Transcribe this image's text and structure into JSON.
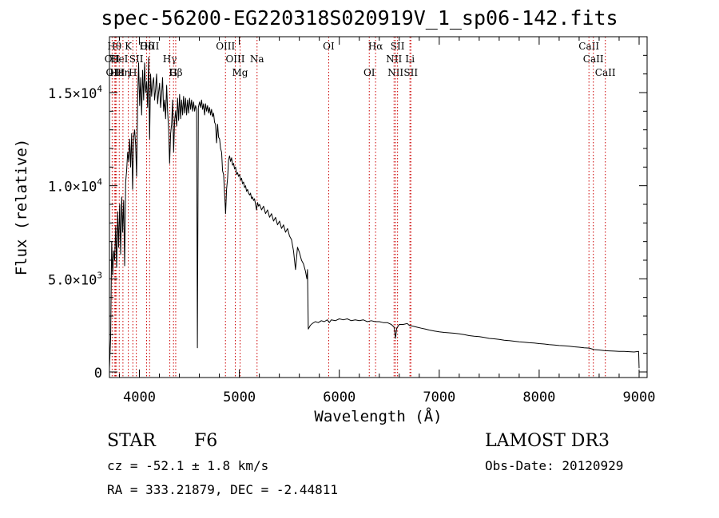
{
  "title": "spec-56200-EG220318S020919V_1_sp06-142.fits",
  "chart_data": {
    "type": "line",
    "title": "spec-56200-EG220318S020919V_1_sp06-142.fits",
    "xlabel": "Wavelength (Å)",
    "ylabel": "Flux (relative)",
    "xlim": [
      3700,
      9080
    ],
    "ylim": [
      -300,
      18000
    ],
    "xticks": [
      4000,
      5000,
      6000,
      7000,
      8000,
      9000
    ],
    "xtick_labels": [
      "4000",
      "5000",
      "6000",
      "7000",
      "8000",
      "9000"
    ],
    "yticks": [
      0,
      5000,
      10000,
      15000
    ],
    "ytick_labels": [
      {
        "mantissa": "0",
        "exp": ""
      },
      {
        "mantissa": "5.0×10",
        "exp": "3"
      },
      {
        "mantissa": "1.0×10",
        "exp": "4"
      },
      {
        "mantissa": "1.5×10",
        "exp": "4"
      }
    ],
    "series": [
      {
        "name": "spectrum",
        "points": [
          [
            3700,
            200
          ],
          [
            3712,
            1800
          ],
          [
            3722,
            7000
          ],
          [
            3732,
            5200
          ],
          [
            3742,
            6500
          ],
          [
            3752,
            6000
          ],
          [
            3762,
            7800
          ],
          [
            3772,
            5600
          ],
          [
            3782,
            8600
          ],
          [
            3792,
            6700
          ],
          [
            3802,
            9000
          ],
          [
            3812,
            6300
          ],
          [
            3822,
            9400
          ],
          [
            3832,
            7500
          ],
          [
            3842,
            9200
          ],
          [
            3852,
            5700
          ],
          [
            3862,
            10200
          ],
          [
            3872,
            10800
          ],
          [
            3882,
            11800
          ],
          [
            3892,
            11300
          ],
          [
            3902,
            12500
          ],
          [
            3912,
            11000
          ],
          [
            3922,
            12800
          ],
          [
            3932,
            9800
          ],
          [
            3942,
            12600
          ],
          [
            3952,
            13000
          ],
          [
            3962,
            12200
          ],
          [
            3972,
            10500
          ],
          [
            3982,
            14600
          ],
          [
            3992,
            16600
          ],
          [
            4002,
            14300
          ],
          [
            4012,
            15800
          ],
          [
            4022,
            13800
          ],
          [
            4032,
            16200
          ],
          [
            4042,
            14600
          ],
          [
            4052,
            16600
          ],
          [
            4062,
            15000
          ],
          [
            4072,
            15600
          ],
          [
            4082,
            14200
          ],
          [
            4092,
            16900
          ],
          [
            4102,
            12500
          ],
          [
            4112,
            16000
          ],
          [
            4122,
            14800
          ],
          [
            4132,
            15500
          ],
          [
            4142,
            15800
          ],
          [
            4152,
            14600
          ],
          [
            4162,
            15200
          ],
          [
            4172,
            16000
          ],
          [
            4182,
            14400
          ],
          [
            4192,
            15000
          ],
          [
            4202,
            15500
          ],
          [
            4212,
            14200
          ],
          [
            4222,
            14900
          ],
          [
            4232,
            15800
          ],
          [
            4242,
            14000
          ],
          [
            4252,
            14600
          ],
          [
            4262,
            13600
          ],
          [
            4272,
            15400
          ],
          [
            4282,
            14000
          ],
          [
            4292,
            13000
          ],
          [
            4302,
            11200
          ],
          [
            4312,
            12800
          ],
          [
            4322,
            13300
          ],
          [
            4332,
            14600
          ],
          [
            4342,
            11800
          ],
          [
            4352,
            13500
          ],
          [
            4362,
            14000
          ],
          [
            4372,
            13200
          ],
          [
            4382,
            14700
          ],
          [
            4392,
            13500
          ],
          [
            4402,
            14900
          ],
          [
            4412,
            13600
          ],
          [
            4422,
            14600
          ],
          [
            4432,
            13800
          ],
          [
            4442,
            14800
          ],
          [
            4452,
            13900
          ],
          [
            4462,
            14700
          ],
          [
            4472,
            13800
          ],
          [
            4482,
            14600
          ],
          [
            4492,
            13900
          ],
          [
            4502,
            14700
          ],
          [
            4512,
            14100
          ],
          [
            4522,
            14600
          ],
          [
            4532,
            14000
          ],
          [
            4542,
            14500
          ],
          [
            4552,
            14000
          ],
          [
            4562,
            14300
          ],
          [
            4572,
            14100
          ],
          [
            4580,
            1300
          ],
          [
            4590,
            14200
          ],
          [
            4602,
            14500
          ],
          [
            4612,
            14200
          ],
          [
            4622,
            14600
          ],
          [
            4632,
            14100
          ],
          [
            4642,
            14400
          ],
          [
            4652,
            13800
          ],
          [
            4662,
            14400
          ],
          [
            4672,
            14000
          ],
          [
            4682,
            14300
          ],
          [
            4692,
            13900
          ],
          [
            4702,
            14200
          ],
          [
            4712,
            13800
          ],
          [
            4722,
            14100
          ],
          [
            4732,
            13700
          ],
          [
            4742,
            13900
          ],
          [
            4752,
            13400
          ],
          [
            4762,
            13300
          ],
          [
            4772,
            12300
          ],
          [
            4782,
            13300
          ],
          [
            4792,
            12600
          ],
          [
            4802,
            12500
          ],
          [
            4812,
            12000
          ],
          [
            4822,
            11800
          ],
          [
            4832,
            10800
          ],
          [
            4842,
            10600
          ],
          [
            4852,
            9600
          ],
          [
            4862,
            8500
          ],
          [
            4872,
            9800
          ],
          [
            4882,
            10400
          ],
          [
            4892,
            11400
          ],
          [
            4902,
            11600
          ],
          [
            4912,
            11300
          ],
          [
            4922,
            11500
          ],
          [
            4932,
            11100
          ],
          [
            4942,
            11200
          ],
          [
            4952,
            10900
          ],
          [
            4962,
            11000
          ],
          [
            4972,
            10600
          ],
          [
            4982,
            10700
          ],
          [
            4992,
            10500
          ],
          [
            5002,
            10600
          ],
          [
            5012,
            10300
          ],
          [
            5022,
            10400
          ],
          [
            5032,
            10100
          ],
          [
            5042,
            10200
          ],
          [
            5052,
            9900
          ],
          [
            5062,
            10000
          ],
          [
            5072,
            9700
          ],
          [
            5082,
            9800
          ],
          [
            5092,
            9600
          ],
          [
            5102,
            9500
          ],
          [
            5112,
            9600
          ],
          [
            5122,
            9300
          ],
          [
            5132,
            9400
          ],
          [
            5142,
            9200
          ],
          [
            5152,
            9300
          ],
          [
            5162,
            9000
          ],
          [
            5172,
            8700
          ],
          [
            5182,
            9100
          ],
          [
            5192,
            8900
          ],
          [
            5202,
            9000
          ],
          [
            5222,
            8700
          ],
          [
            5242,
            8900
          ],
          [
            5262,
            8500
          ],
          [
            5282,
            8700
          ],
          [
            5302,
            8300
          ],
          [
            5322,
            8500
          ],
          [
            5342,
            8100
          ],
          [
            5362,
            8300
          ],
          [
            5382,
            7900
          ],
          [
            5402,
            8100
          ],
          [
            5422,
            7700
          ],
          [
            5442,
            7900
          ],
          [
            5462,
            7500
          ],
          [
            5482,
            7700
          ],
          [
            5502,
            7300
          ],
          [
            5522,
            7100
          ],
          [
            5542,
            6500
          ],
          [
            5562,
            5500
          ],
          [
            5582,
            6700
          ],
          [
            5602,
            6400
          ],
          [
            5622,
            6000
          ],
          [
            5642,
            5800
          ],
          [
            5662,
            5400
          ],
          [
            5675,
            5000
          ],
          [
            5682,
            5500
          ],
          [
            5690,
            2300
          ],
          [
            5710,
            2500
          ],
          [
            5730,
            2600
          ],
          [
            5760,
            2700
          ],
          [
            5790,
            2650
          ],
          [
            5820,
            2750
          ],
          [
            5850,
            2700
          ],
          [
            5880,
            2800
          ],
          [
            5900,
            2650
          ],
          [
            5920,
            2800
          ],
          [
            5960,
            2750
          ],
          [
            6000,
            2850
          ],
          [
            6040,
            2800
          ],
          [
            6080,
            2850
          ],
          [
            6120,
            2750
          ],
          [
            6160,
            2800
          ],
          [
            6200,
            2750
          ],
          [
            6240,
            2800
          ],
          [
            6280,
            2700
          ],
          [
            6320,
            2750
          ],
          [
            6360,
            2700
          ],
          [
            6400,
            2700
          ],
          [
            6440,
            2650
          ],
          [
            6480,
            2650
          ],
          [
            6520,
            2550
          ],
          [
            6550,
            2400
          ],
          [
            6562,
            1800
          ],
          [
            6575,
            2350
          ],
          [
            6600,
            2550
          ],
          [
            6640,
            2550
          ],
          [
            6680,
            2600
          ],
          [
            6700,
            2500
          ],
          [
            6740,
            2450
          ],
          [
            6780,
            2400
          ],
          [
            6820,
            2350
          ],
          [
            6860,
            2300
          ],
          [
            6900,
            2250
          ],
          [
            6950,
            2200
          ],
          [
            7000,
            2150
          ],
          [
            7050,
            2120
          ],
          [
            7100,
            2100
          ],
          [
            7150,
            2080
          ],
          [
            7200,
            2050
          ],
          [
            7250,
            2000
          ],
          [
            7300,
            1950
          ],
          [
            7350,
            1920
          ],
          [
            7400,
            1900
          ],
          [
            7450,
            1850
          ],
          [
            7500,
            1800
          ],
          [
            7550,
            1780
          ],
          [
            7600,
            1750
          ],
          [
            7650,
            1700
          ],
          [
            7700,
            1680
          ],
          [
            7750,
            1650
          ],
          [
            7800,
            1620
          ],
          [
            7850,
            1600
          ],
          [
            7900,
            1570
          ],
          [
            7950,
            1550
          ],
          [
            8000,
            1520
          ],
          [
            8050,
            1500
          ],
          [
            8100,
            1470
          ],
          [
            8150,
            1450
          ],
          [
            8200,
            1420
          ],
          [
            8250,
            1400
          ],
          [
            8300,
            1380
          ],
          [
            8350,
            1350
          ],
          [
            8400,
            1330
          ],
          [
            8450,
            1300
          ],
          [
            8500,
            1280
          ],
          [
            8550,
            1200
          ],
          [
            8600,
            1180
          ],
          [
            8650,
            1150
          ],
          [
            8700,
            1130
          ],
          [
            8750,
            1120
          ],
          [
            8800,
            1100
          ],
          [
            8850,
            1100
          ],
          [
            8900,
            1090
          ],
          [
            8950,
            1070
          ],
          [
            8995,
            1100
          ],
          [
            9000,
            200
          ]
        ]
      }
    ],
    "line_markers": [
      {
        "label": "OII",
        "wave": 3727,
        "row": 2
      },
      {
        "label": "Hθ",
        "wave": 3750,
        "row": 1
      },
      {
        "label": "OIII",
        "wave": 3760,
        "row": 3
      },
      {
        "label": "Hε",
        "wave": 3770,
        "row": 3
      },
      {
        "label": "HeI",
        "wave": 3798,
        "row": 2
      },
      {
        "label": "Hη",
        "wave": 3835,
        "row": 3
      },
      {
        "label": "K",
        "wave": 3889,
        "row": 1
      },
      {
        "label": "H",
        "wave": 3934,
        "row": 3
      },
      {
        "label": "SII",
        "wave": 3969,
        "row": 2
      },
      {
        "label": "Hδ",
        "wave": 4072,
        "row": 1
      },
      {
        "label": "OIII",
        "wave": 4102,
        "row": 1
      },
      {
        "label": "Hγ",
        "wave": 4304,
        "row": 2
      },
      {
        "label": "G",
        "wave": 4341,
        "row": 3
      },
      {
        "label": "Hβ",
        "wave": 4363,
        "row": 3
      },
      {
        "label": "OIII",
        "wave": 4861,
        "row": 1
      },
      {
        "label": "OIII",
        "wave": 4959,
        "row": 2
      },
      {
        "label": "Mg",
        "wave": 5007,
        "row": 3
      },
      {
        "label": "Na",
        "wave": 5177,
        "row": 2
      },
      {
        "label": "OI",
        "wave": 5894,
        "row": 1
      },
      {
        "label": "OI",
        "wave": 6300,
        "row": 3
      },
      {
        "label": "Hα",
        "wave": 6363,
        "row": 1
      },
      {
        "label": "NII",
        "wave": 6548,
        "row": 2
      },
      {
        "label": "NII",
        "wave": 6563,
        "row": 3
      },
      {
        "label": "SII",
        "wave": 6583,
        "row": 1
      },
      {
        "label": "Li",
        "wave": 6707,
        "row": 2
      },
      {
        "label": "SII",
        "wave": 6716,
        "row": 3
      },
      {
        "label": "CaII",
        "wave": 8498,
        "row": 1
      },
      {
        "label": "CaII",
        "wave": 8542,
        "row": 2
      },
      {
        "label": "CaII",
        "wave": 8662,
        "row": 3
      }
    ]
  },
  "info": {
    "class": "STAR",
    "subclass": "F6",
    "survey": "LAMOST DR3",
    "cz": "cz = -52.1 ± 1.8 km/s",
    "obs_date": "Obs-Date: 20120929",
    "coords": "RA = 333.21879, DEC =  -2.44811"
  }
}
